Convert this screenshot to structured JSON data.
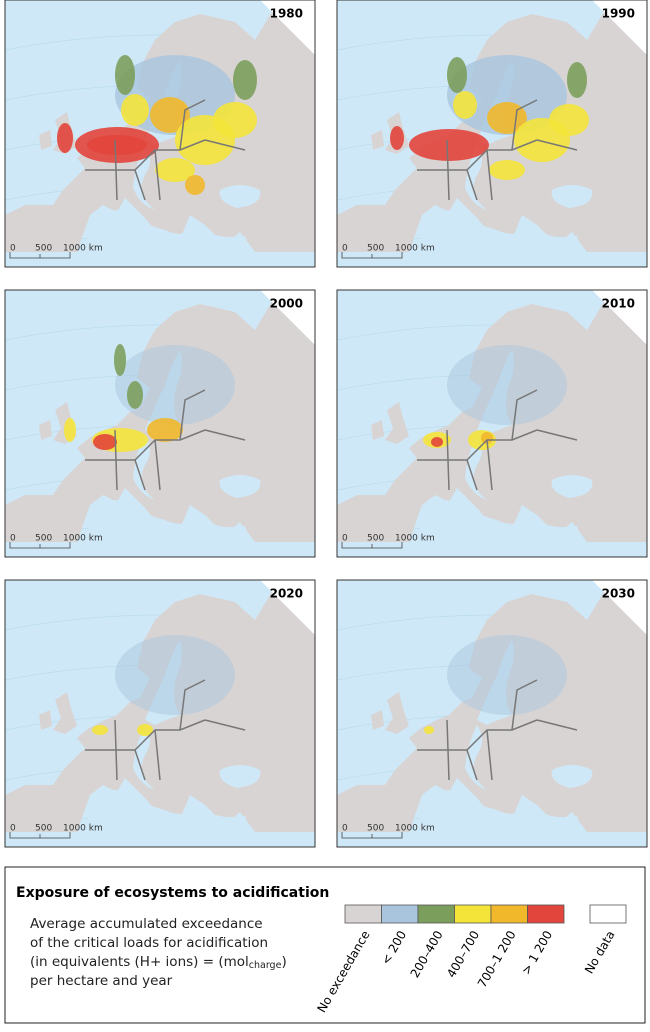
{
  "panels": [
    {
      "year": "1980"
    },
    {
      "year": "1990"
    },
    {
      "year": "2000"
    },
    {
      "year": "2010"
    },
    {
      "year": "2020"
    },
    {
      "year": "2030"
    }
  ],
  "scale": {
    "zero": "0",
    "mid": "500",
    "end": "1000 km"
  },
  "legend": {
    "title": "Exposure of ecosystems to acidification",
    "description": [
      "Average accumulated exceedance",
      "of the critical loads for acidification"
    ],
    "units": {
      "before": "(in equivalents (H+ ions) = (mol",
      "sub": "charge",
      "after": ")"
    },
    "last_line": "per hectare and year",
    "items": [
      {
        "label": "No exceedance",
        "color": "#d8d4d4"
      },
      {
        "label": "< 200",
        "color": "#a9c5de"
      },
      {
        "label": "200–400",
        "color": "#7c9e5c"
      },
      {
        "label": "400–700",
        "color": "#f4e43a"
      },
      {
        "label": "700–1 200",
        "color": "#f1b82b"
      },
      {
        "label": "> 1 200",
        "color": "#e2453b"
      }
    ],
    "no_data": {
      "label": "No data",
      "color": "#ffffff"
    }
  }
}
